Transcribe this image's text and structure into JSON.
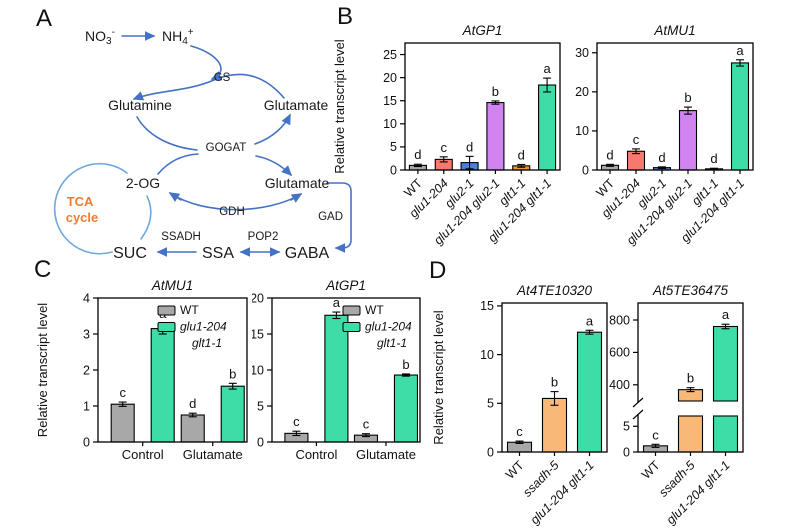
{
  "background": "#FFFFFF",
  "panels": {
    "a": "A",
    "b": "B",
    "c": "C",
    "d": "D"
  },
  "diagram": {
    "colors": {
      "arrow": "#4472C4",
      "tca_arc": "#6FA8DC",
      "tca_text": "#ED7D31",
      "text": "#1a1a1a"
    },
    "nodes": {
      "no3": {
        "base": "NO",
        "sub": "3",
        "sup": "-"
      },
      "nh4": {
        "base": "NH",
        "sub": "4",
        "sup": "+"
      },
      "gs": "GS",
      "glutamine": "Glutamine",
      "glutamate_top": "Glutamate",
      "gogat": "GOGAT",
      "og": "2-OG",
      "glutamate_bottom": "Glutamate",
      "gdh": "GDH",
      "gad": "GAD",
      "tca_line1": "TCA",
      "tca_line2": "cycle",
      "ssadh": "SSADH",
      "pop2": "POP2",
      "suc": "SUC",
      "ssa": "SSA",
      "gaba": "GABA"
    }
  },
  "chart_data": [
    {
      "id": "B1",
      "panel": "B",
      "type": "bar",
      "title": "AtGP1",
      "ylabel": "Relative transcript level",
      "categories": [
        {
          "text": "WT",
          "italic": false
        },
        {
          "text": "glu1-204",
          "italic": true
        },
        {
          "text": "glu2-1",
          "italic": true
        },
        {
          "text": "glu1-204 glu2-1",
          "italic": true
        },
        {
          "text": "glt1-1",
          "italic": true
        },
        {
          "text": "glu1-204 glt1-1",
          "italic": true
        }
      ],
      "values": [
        1.0,
        2.3,
        1.6,
        14.6,
        0.9,
        18.4
      ],
      "errors": [
        0.25,
        0.55,
        1.35,
        0.35,
        0.3,
        1.5
      ],
      "letters": [
        "d",
        "c",
        "d",
        "b",
        "d",
        "a"
      ],
      "colors": [
        "#A8A8A8",
        "#F5796D",
        "#4A80D9",
        "#D183F0",
        "#F0922E",
        "#3EDCA6"
      ],
      "yticks": [
        0,
        5,
        10,
        15,
        20,
        25
      ],
      "ylim": [
        0,
        27.5
      ]
    },
    {
      "id": "B2",
      "panel": "B",
      "type": "bar",
      "title": "AtMU1",
      "ylabel": "",
      "categories": [
        {
          "text": "WT",
          "italic": false
        },
        {
          "text": "glu1-204",
          "italic": true
        },
        {
          "text": "glu2-1",
          "italic": true
        },
        {
          "text": "glu1-204 glu2-1",
          "italic": true
        },
        {
          "text": "glt1-1",
          "italic": true
        },
        {
          "text": "glu1-204 glt1-1",
          "italic": true
        }
      ],
      "values": [
        1.2,
        4.8,
        0.6,
        15.2,
        0.3,
        27.4
      ],
      "errors": [
        0.25,
        0.6,
        0.2,
        0.9,
        0.15,
        0.8
      ],
      "letters": [
        "d",
        "c",
        "d",
        "b",
        "d",
        "a"
      ],
      "colors": [
        "#A8A8A8",
        "#F5796D",
        "#4A80D9",
        "#D183F0",
        "#F0922E",
        "#3EDCA6"
      ],
      "yticks": [
        0,
        10,
        20,
        30
      ],
      "ylim": [
        0,
        32.5
      ]
    },
    {
      "id": "C1",
      "panel": "C",
      "type": "grouped-bar",
      "title": "AtMU1",
      "ylabel": "Relative transcript level",
      "categories": [
        {
          "text": "Control",
          "italic": false
        },
        {
          "text": "Glutamate",
          "italic": false
        }
      ],
      "series": [
        {
          "name": "WT",
          "name_lines": [
            "WT"
          ],
          "italic": false,
          "color": "#A8A8A8",
          "values": [
            1.05,
            0.75
          ],
          "errors": [
            0.06,
            0.05
          ],
          "letters": [
            "c",
            "d"
          ]
        },
        {
          "name": "glu1-204 glt1-1",
          "name_lines": [
            "glu1-204",
            "glt1-1"
          ],
          "italic": true,
          "color": "#3EDCA6",
          "values": [
            3.15,
            1.55
          ],
          "errors": [
            0.15,
            0.08
          ],
          "letters": [
            "a",
            "b"
          ]
        }
      ],
      "yticks": [
        0,
        1,
        2,
        3,
        4
      ],
      "ylim": [
        0,
        4
      ],
      "legend": true
    },
    {
      "id": "C2",
      "panel": "C",
      "type": "grouped-bar",
      "title": "AtGP1",
      "ylabel": "",
      "categories": [
        {
          "text": "Control",
          "italic": false
        },
        {
          "text": "Glutamate",
          "italic": false
        }
      ],
      "series": [
        {
          "name": "WT",
          "name_lines": [
            "WT"
          ],
          "italic": false,
          "color": "#A8A8A8",
          "values": [
            1.2,
            0.95
          ],
          "errors": [
            0.3,
            0.2
          ],
          "letters": [
            "c",
            "c"
          ]
        },
        {
          "name": "glu1-204 glt1-1",
          "name_lines": [
            "glu1-204",
            "glt1-1"
          ],
          "italic": true,
          "color": "#3EDCA6",
          "values": [
            17.6,
            9.3
          ],
          "errors": [
            0.45,
            0.15
          ],
          "letters": [
            "a",
            "b"
          ]
        }
      ],
      "yticks": [
        0,
        5,
        10,
        15,
        20
      ],
      "ylim": [
        0,
        20
      ],
      "legend": true
    },
    {
      "id": "D1",
      "panel": "D",
      "type": "bar",
      "title": "At4TE10320",
      "ylabel": "Relative transcript level",
      "categories": [
        {
          "text": "WT",
          "italic": false
        },
        {
          "text": "ssadh-5",
          "italic": true
        },
        {
          "text": "glu1-204 glt1-1",
          "italic": true
        }
      ],
      "values": [
        1.0,
        5.5,
        12.3
      ],
      "errors": [
        0.12,
        0.7,
        0.2
      ],
      "letters": [
        "c",
        "b",
        "a"
      ],
      "colors": [
        "#A8A8A8",
        "#F8B878",
        "#3EDCA6"
      ],
      "yticks": [
        0,
        5,
        10,
        15
      ],
      "ylim": [
        0,
        15.3
      ]
    },
    {
      "id": "D2",
      "panel": "D",
      "type": "broken-bar",
      "title": "At5TE36475",
      "ylabel": "",
      "categories": [
        {
          "text": "WT",
          "italic": false
        },
        {
          "text": "ssadh-5",
          "italic": true
        },
        {
          "text": "glu1-204 glt1-1",
          "italic": true
        }
      ],
      "values": [
        1.2,
        370,
        760
      ],
      "errors": [
        0.3,
        12,
        14
      ],
      "letters": [
        "c",
        "b",
        "a"
      ],
      "colors": [
        "#A8A8A8",
        "#F8B878",
        "#3EDCA6"
      ],
      "lower": {
        "ticks": [
          0,
          5
        ],
        "lim": [
          0,
          7
        ]
      },
      "upper": {
        "ticks": [
          400,
          600,
          800
        ],
        "lim": [
          300,
          905
        ]
      }
    }
  ]
}
